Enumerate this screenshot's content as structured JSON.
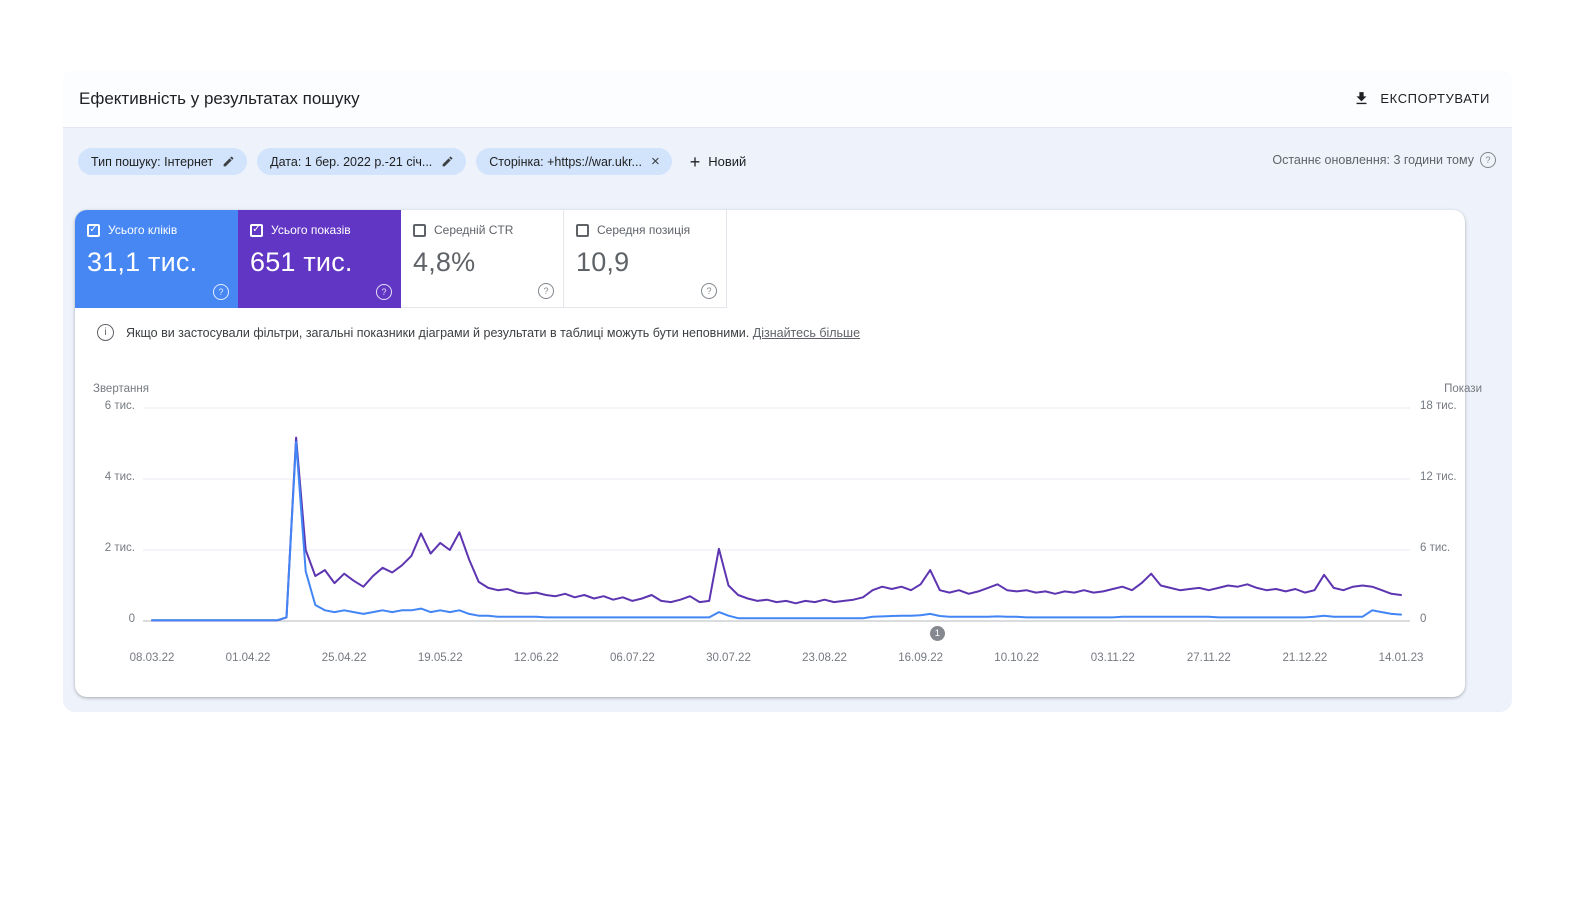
{
  "page": {
    "title": "Ефективність у результатах пошуку",
    "export_label": "ЕКСПОРТУВАТИ",
    "last_update": "Останнє оновлення: 3 години тому"
  },
  "filters": {
    "chips": [
      {
        "label": "Тип пошуку: Інтернет",
        "action": "edit"
      },
      {
        "label": "Дата: 1 бер. 2022 р.-21 січ...",
        "action": "edit"
      },
      {
        "label": "Сторінка: +https://war.ukr...",
        "action": "remove"
      }
    ],
    "new_filter_label": "Новий"
  },
  "metrics": [
    {
      "label": "Усього кліків",
      "value": "31,1 тис.",
      "checked": true,
      "color": "#4285f4"
    },
    {
      "label": "Усього показів",
      "value": "651 тис.",
      "checked": true,
      "color": "#5e35b1"
    },
    {
      "label": "Середній CTR",
      "value": "4,8%",
      "checked": false
    },
    {
      "label": "Середня позиція",
      "value": "10,9",
      "checked": false
    }
  ],
  "notice": {
    "text": "Якщо ви застосували фільтри, загальні показники діаграми й результати в таблиці можуть бути неповними.",
    "link": "Дізнайтесь більше"
  },
  "icons": {
    "help": "?",
    "info": "i",
    "close": "×",
    "plus": "+",
    "check": "✓"
  },
  "chart_data": {
    "type": "line",
    "title": "",
    "grid": true,
    "x_ticks": [
      "08.03.22",
      "01.04.22",
      "25.04.22",
      "19.05.22",
      "12.06.22",
      "06.07.22",
      "30.07.22",
      "23.08.22",
      "16.09.22",
      "10.10.22",
      "03.11.22",
      "27.11.22",
      "21.12.22",
      "14.01.23"
    ],
    "left_axis": {
      "title": "Звертання",
      "ticks": [
        "6 тис.",
        "4 тис.",
        "2 тис.",
        "0"
      ],
      "max": 6,
      "unit": "тис."
    },
    "right_axis": {
      "title": "Покази",
      "ticks": [
        "18 тис.",
        "12 тис.",
        "6 тис.",
        "0"
      ],
      "max": 18,
      "unit": "тис."
    },
    "annotation": {
      "label": "1",
      "x_frac": 0.627
    },
    "series": [
      {
        "name": "Усього показів",
        "axis": "right",
        "color": "#5e35b1",
        "unit": "тис.",
        "values": [
          0.05,
          0.05,
          0.05,
          0.05,
          0.05,
          0.05,
          0.05,
          0.05,
          0.05,
          0.05,
          0.05,
          0.05,
          0.05,
          0.05,
          0.3,
          15.5,
          6.0,
          3.8,
          4.3,
          3.2,
          4.0,
          3.4,
          2.9,
          3.8,
          4.5,
          4.1,
          4.7,
          5.5,
          7.4,
          5.7,
          6.6,
          6.0,
          7.5,
          5.2,
          3.3,
          2.8,
          2.6,
          2.7,
          2.4,
          2.3,
          2.4,
          2.2,
          2.1,
          2.3,
          2.0,
          2.2,
          1.9,
          2.1,
          1.8,
          2.0,
          1.7,
          1.9,
          2.2,
          1.7,
          1.6,
          1.8,
          2.1,
          1.6,
          1.7,
          6.1,
          3.0,
          2.2,
          1.9,
          1.7,
          1.8,
          1.6,
          1.7,
          1.5,
          1.7,
          1.6,
          1.8,
          1.6,
          1.7,
          1.8,
          2.0,
          2.6,
          2.9,
          2.7,
          2.9,
          2.6,
          3.1,
          4.3,
          2.6,
          2.4,
          2.6,
          2.3,
          2.5,
          2.8,
          3.1,
          2.6,
          2.5,
          2.6,
          2.4,
          2.5,
          2.3,
          2.5,
          2.4,
          2.6,
          2.4,
          2.5,
          2.7,
          2.9,
          2.6,
          3.2,
          4.0,
          3.0,
          2.8,
          2.6,
          2.7,
          2.8,
          2.6,
          2.8,
          3.0,
          2.9,
          3.1,
          2.8,
          2.6,
          2.7,
          2.5,
          2.7,
          2.4,
          2.6,
          3.9,
          2.8,
          2.6,
          2.9,
          3.0,
          2.9,
          2.6,
          2.3,
          2.2
        ]
      },
      {
        "name": "Усього кліків",
        "axis": "left",
        "color": "#4285f4",
        "unit": "тис.",
        "values": [
          0.02,
          0.02,
          0.02,
          0.02,
          0.02,
          0.02,
          0.02,
          0.02,
          0.02,
          0.02,
          0.02,
          0.02,
          0.02,
          0.02,
          0.1,
          5.05,
          1.4,
          0.45,
          0.3,
          0.25,
          0.3,
          0.25,
          0.2,
          0.25,
          0.3,
          0.25,
          0.3,
          0.3,
          0.35,
          0.25,
          0.3,
          0.25,
          0.3,
          0.2,
          0.15,
          0.15,
          0.12,
          0.12,
          0.12,
          0.12,
          0.12,
          0.1,
          0.1,
          0.1,
          0.1,
          0.1,
          0.1,
          0.1,
          0.1,
          0.1,
          0.1,
          0.1,
          0.1,
          0.1,
          0.1,
          0.1,
          0.1,
          0.1,
          0.1,
          0.25,
          0.15,
          0.08,
          0.08,
          0.08,
          0.08,
          0.08,
          0.08,
          0.08,
          0.08,
          0.08,
          0.08,
          0.08,
          0.08,
          0.08,
          0.08,
          0.12,
          0.13,
          0.14,
          0.15,
          0.15,
          0.16,
          0.2,
          0.14,
          0.12,
          0.12,
          0.12,
          0.12,
          0.12,
          0.13,
          0.12,
          0.12,
          0.1,
          0.1,
          0.1,
          0.1,
          0.1,
          0.1,
          0.1,
          0.1,
          0.1,
          0.1,
          0.12,
          0.12,
          0.12,
          0.12,
          0.12,
          0.12,
          0.12,
          0.12,
          0.12,
          0.12,
          0.1,
          0.1,
          0.1,
          0.1,
          0.1,
          0.1,
          0.1,
          0.1,
          0.1,
          0.1,
          0.12,
          0.15,
          0.12,
          0.12,
          0.12,
          0.12,
          0.3,
          0.25,
          0.2,
          0.18
        ]
      }
    ]
  }
}
